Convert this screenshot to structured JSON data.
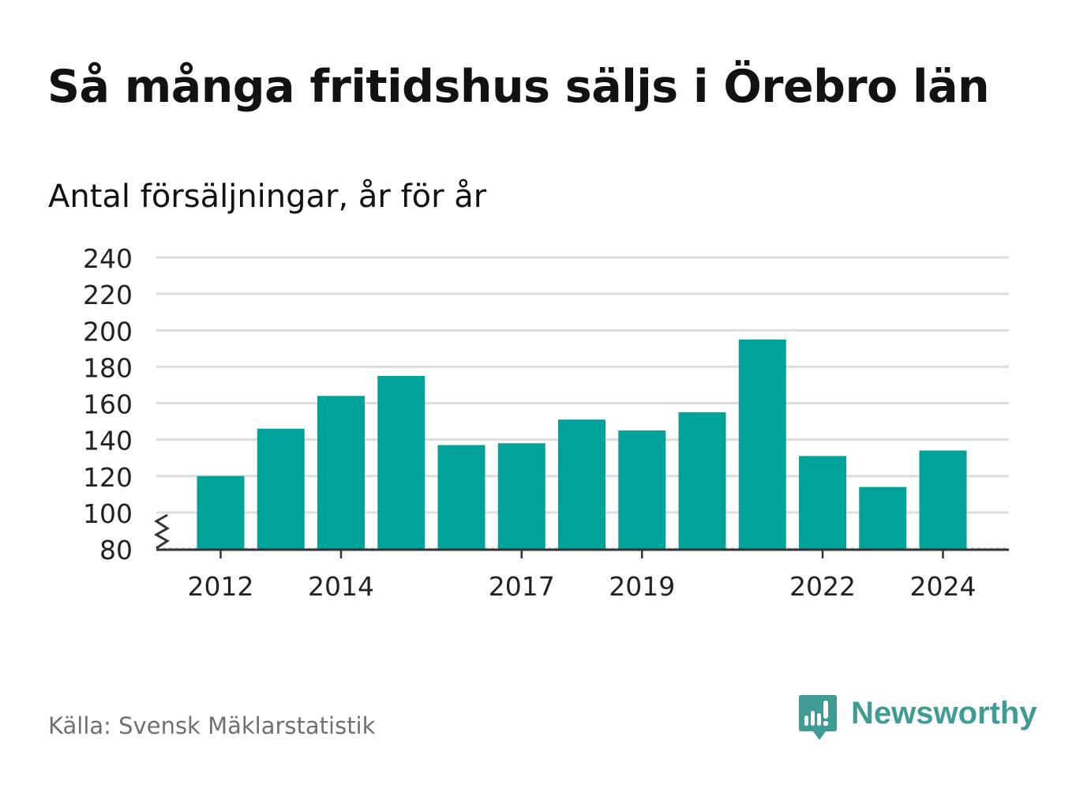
{
  "header": {
    "title": "Så många fritidshus säljs i Örebro län",
    "subtitle": "Antal försäljningar, år för år"
  },
  "footer": {
    "source": "Källa: Svensk Mäklarstatistik",
    "brand": "Newsworthy",
    "brand_icon": "newsworthy-logo-icon"
  },
  "colors": {
    "bar": "#00a399",
    "grid": "#dddddd",
    "axis": "#333333",
    "brand": "#3f9c95"
  },
  "chart_data": {
    "type": "bar",
    "categories": [
      "2012",
      "2013",
      "2014",
      "2015",
      "2016",
      "2017",
      "2018",
      "2019",
      "2020",
      "2021",
      "2022",
      "2023",
      "2024"
    ],
    "values": [
      120,
      146,
      164,
      175,
      137,
      138,
      151,
      145,
      155,
      195,
      131,
      114,
      134
    ],
    "xtick_labels": [
      "2012",
      "2014",
      "2017",
      "2019",
      "2022",
      "2024"
    ],
    "yticks": [
      80,
      100,
      120,
      140,
      160,
      180,
      200,
      220,
      240
    ],
    "ylim": [
      80,
      240
    ],
    "y_axis_break": true,
    "grid": true,
    "title": "Så många fritidshus säljs i Örebro län",
    "subtitle": "Antal försäljningar, år för år",
    "xlabel": "",
    "ylabel": ""
  }
}
